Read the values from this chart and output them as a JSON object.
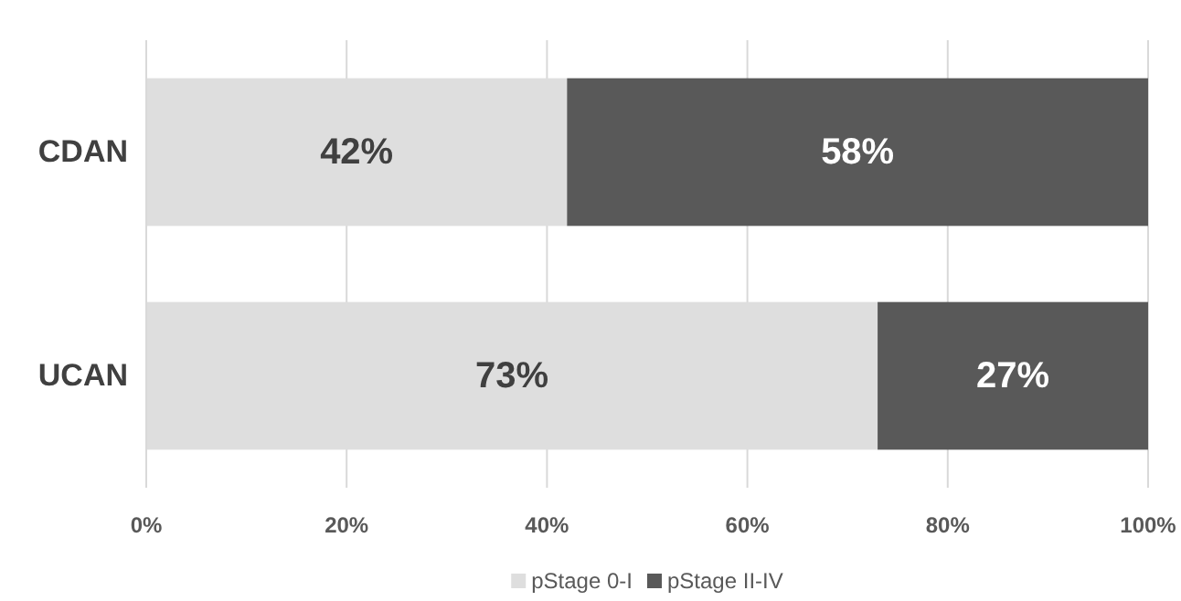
{
  "chart_data": {
    "type": "bar",
    "orientation": "horizontal",
    "stacked": true,
    "categories": [
      "CDAN",
      "UCAN"
    ],
    "series": [
      {
        "name": "pStage 0-I",
        "color": "#dedede",
        "values": [
          42,
          73
        ],
        "value_labels": [
          "42%",
          "73%"
        ]
      },
      {
        "name": "pStage II-IV",
        "color": "#595959",
        "values": [
          58,
          27
        ],
        "value_labels": [
          "58%",
          "27%"
        ]
      }
    ],
    "xlim": [
      0,
      100
    ],
    "xticks": [
      {
        "value": 0,
        "label": "0%"
      },
      {
        "value": 20,
        "label": "20%"
      },
      {
        "value": 40,
        "label": "40%"
      },
      {
        "value": 60,
        "label": "60%"
      },
      {
        "value": 80,
        "label": "80%"
      },
      {
        "value": 100,
        "label": "100%"
      }
    ],
    "grid": "x",
    "legend": "bottom"
  }
}
